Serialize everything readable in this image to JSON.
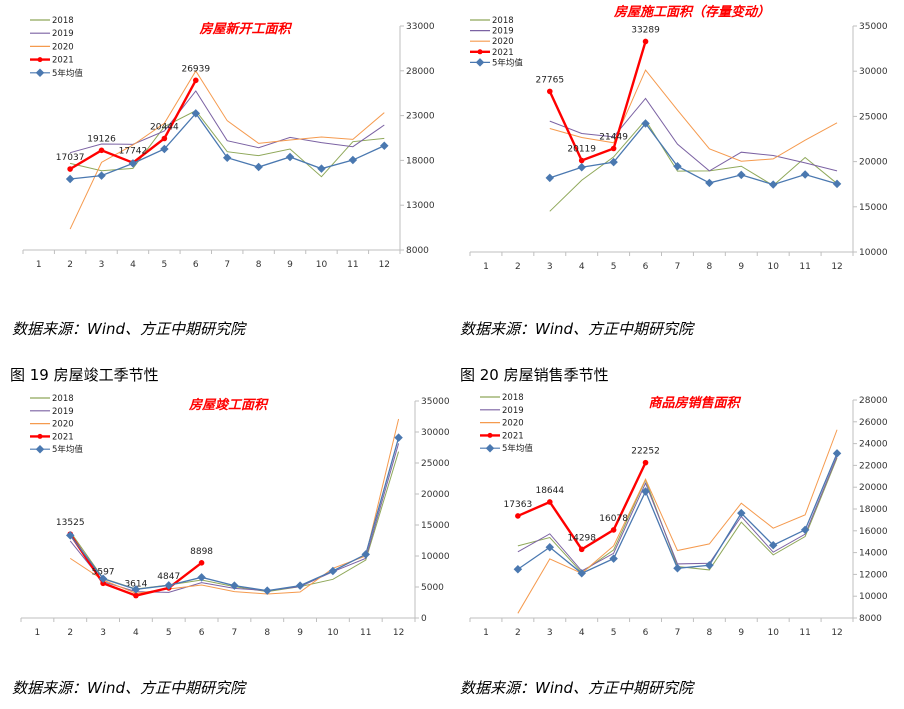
{
  "colors": {
    "y2018": "#8fa85a",
    "y2019": "#7b62a3",
    "y2020": "#f59a4e",
    "y2021": "#ff0000",
    "avg": "#4a78b0",
    "title": "#ff0000",
    "axis": "#bfbfbf"
  },
  "captions": {
    "source_1": "数据来源：Wind、方正中期研究院",
    "source_2": "数据来源：Wind、方正中期研究院",
    "source_3": "数据来源：Wind、方正中期研究院",
    "source_4": "数据来源：Wind、方正中期研究院",
    "fig19": "图 19   房屋竣工季节性",
    "fig20": "图 20   房屋销售季节性"
  },
  "chart_data": [
    {
      "type": "line",
      "title": "房屋新开工面积",
      "categories": [
        "1",
        "2",
        "3",
        "4",
        "5",
        "6",
        "7",
        "8",
        "9",
        "10",
        "11",
        "12"
      ],
      "ylim": [
        8000,
        33000
      ],
      "yticks": [
        8000,
        13000,
        18000,
        23000,
        28000,
        33000
      ],
      "legend": "top-left",
      "series": [
        {
          "name": "2018",
          "color": "y2018",
          "values": [
            null,
            17670,
            16850,
            17110,
            21770,
            23550,
            18970,
            18530,
            19270,
            16180,
            20090,
            20460
          ]
        },
        {
          "name": "2019",
          "color": "y2019",
          "values": [
            null,
            18860,
            19830,
            19790,
            21280,
            25750,
            20200,
            19420,
            20570,
            19980,
            19530,
            21950
          ]
        },
        {
          "name": "2020",
          "color": "y2020",
          "values": [
            null,
            10340,
            17780,
            19720,
            22140,
            27980,
            22430,
            19900,
            20280,
            20610,
            20350,
            23330
          ]
        },
        {
          "name": "2021",
          "color": "y2021",
          "values": [
            null,
            17037,
            19126,
            17742,
            20444,
            26939,
            null,
            null,
            null,
            null,
            null,
            null
          ],
          "labels": true
        },
        {
          "name": "5年均值",
          "color": "avg",
          "values": [
            null,
            15920,
            16300,
            17670,
            19270,
            23250,
            18300,
            17260,
            18380,
            17080,
            18040,
            19640
          ]
        }
      ]
    },
    {
      "type": "line",
      "title": "房屋施工面积（存量变动）",
      "categories": [
        "1",
        "2",
        "3",
        "4",
        "5",
        "6",
        "7",
        "8",
        "9",
        "10",
        "11",
        "12"
      ],
      "ylim": [
        10000,
        35000
      ],
      "yticks": [
        10000,
        15000,
        20000,
        25000,
        30000,
        35000
      ],
      "legend": "top-left",
      "series": [
        {
          "name": "2018",
          "color": "y2018",
          "values": [
            null,
            null,
            14500,
            17940,
            20520,
            24590,
            18940,
            18970,
            19490,
            17350,
            20450,
            17570
          ]
        },
        {
          "name": "2019",
          "color": "y2019",
          "values": [
            null,
            null,
            24480,
            23110,
            22740,
            26990,
            21930,
            18970,
            21040,
            20670,
            19860,
            18970
          ]
        },
        {
          "name": "2020",
          "color": "y2020",
          "values": [
            null,
            null,
            23660,
            22670,
            22080,
            30130,
            25700,
            21410,
            20040,
            20300,
            22370,
            24290
          ]
        },
        {
          "name": "2021",
          "color": "y2021",
          "values": [
            null,
            null,
            27765,
            20119,
            21449,
            33289,
            null,
            null,
            null,
            null,
            null,
            null
          ],
          "labels": true
        },
        {
          "name": "5年均值",
          "color": "avg",
          "values": [
            null,
            null,
            18200,
            19380,
            19940,
            24220,
            19490,
            17640,
            18530,
            17460,
            18570,
            17540
          ]
        }
      ]
    },
    {
      "type": "line",
      "title": "房屋竣工面积",
      "categories": [
        "1",
        "2",
        "3",
        "4",
        "5",
        "6",
        "7",
        "8",
        "9",
        "10",
        "11",
        "12"
      ],
      "ylim": [
        0,
        35000
      ],
      "yticks": [
        0,
        5000,
        10000,
        15000,
        20000,
        25000,
        30000,
        35000
      ],
      "legend": "top-left",
      "series": [
        {
          "name": "2018",
          "color": "y2018",
          "values": [
            null,
            13920,
            6400,
            4680,
            5330,
            6130,
            5060,
            4250,
            5060,
            6240,
            9350,
            26830
          ]
        },
        {
          "name": "2019",
          "color": "y2019",
          "values": [
            null,
            12420,
            5860,
            4250,
            4140,
            5700,
            4780,
            4410,
            5060,
            7470,
            9620,
            28170
          ]
        },
        {
          "name": "2020",
          "color": "y2020",
          "values": [
            null,
            9620,
            6130,
            3980,
            4680,
            5320,
            4250,
            3870,
            4190,
            8010,
            10000,
            32100
          ]
        },
        {
          "name": "2021",
          "color": "y2021",
          "values": [
            null,
            13525,
            5597,
            3614,
            4847,
            8898,
            null,
            null,
            null,
            null,
            null,
            null
          ],
          "labels": true
        },
        {
          "name": "5年均值",
          "color": "avg",
          "values": [
            null,
            13330,
            6340,
            4620,
            5270,
            6560,
            5220,
            4410,
            5220,
            7580,
            10270,
            29090
          ]
        }
      ]
    },
    {
      "type": "line",
      "title": "商品房销售面积",
      "categories": [
        "1",
        "2",
        "3",
        "4",
        "5",
        "6",
        "7",
        "8",
        "9",
        "10",
        "11",
        "12"
      ],
      "ylim": [
        8000,
        28000
      ],
      "yticks": [
        8000,
        10000,
        12000,
        14000,
        16000,
        18000,
        20000,
        22000,
        24000,
        26000,
        28000
      ],
      "legend": "top-left",
      "series": [
        {
          "name": "2018",
          "color": "y2018",
          "values": [
            null,
            14620,
            15380,
            12170,
            14250,
            20680,
            12720,
            12410,
            16790,
            13790,
            15470,
            22670
          ]
        },
        {
          "name": "2019",
          "color": "y2019",
          "values": [
            null,
            14070,
            15720,
            12320,
            13940,
            20370,
            12960,
            13020,
            17310,
            14040,
            15690,
            22820
          ]
        },
        {
          "name": "2020",
          "color": "y2020",
          "values": [
            null,
            8430,
            13420,
            12100,
            14620,
            20740,
            14190,
            14800,
            18530,
            16240,
            17460,
            25270
          ]
        },
        {
          "name": "2021",
          "color": "y2021",
          "values": [
            null,
            17363,
            18644,
            14298,
            16078,
            22252,
            null,
            null,
            null,
            null,
            null,
            null
          ],
          "labels": true
        },
        {
          "name": "5年均值",
          "color": "avg",
          "values": [
            null,
            12470,
            14490,
            12100,
            13450,
            19610,
            12560,
            12840,
            17620,
            14680,
            16090,
            23100
          ]
        }
      ]
    }
  ]
}
